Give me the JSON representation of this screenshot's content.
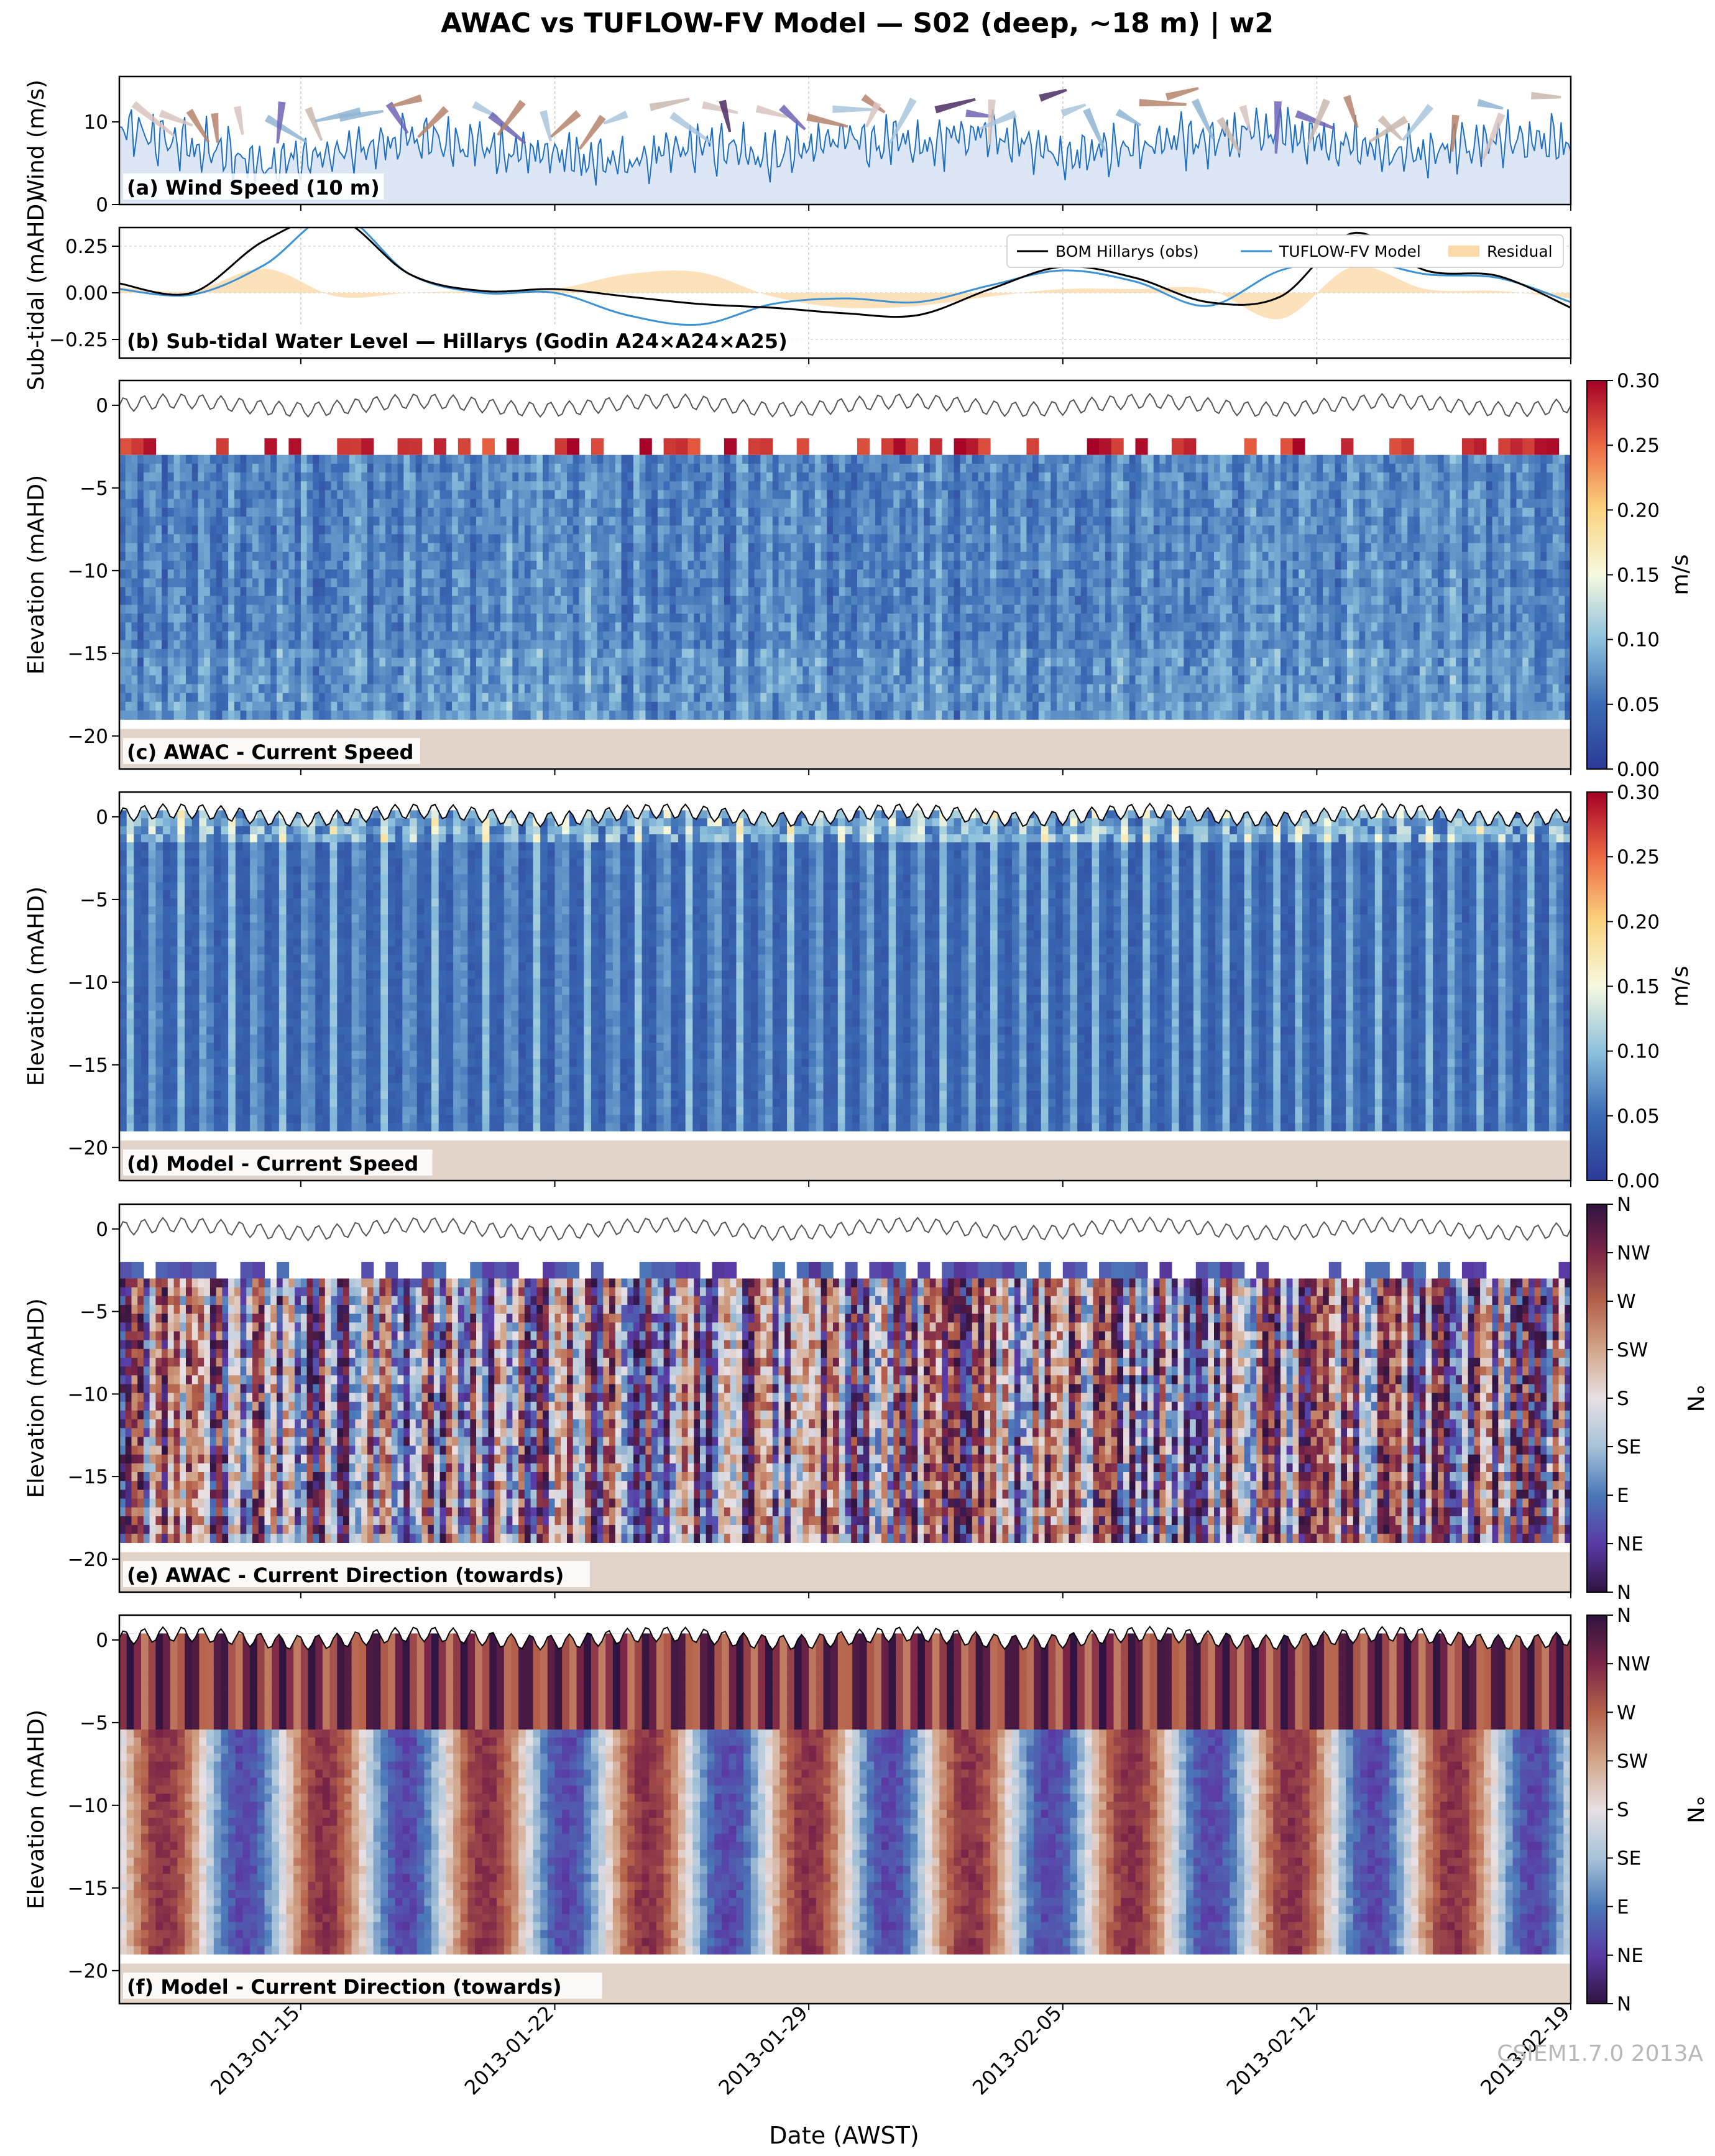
{
  "figure": {
    "title": "AWAC vs TUFLOW-FV Model — S02 (deep, ~18 m) | w2",
    "xlabel": "Date (AWST)",
    "x_ticks": [
      "2013-01-15",
      "2013-01-22",
      "2013-01-29",
      "2013-02-05",
      "2013-02-12",
      "2013-02-19"
    ],
    "x_range": [
      "2013-01-10",
      "2013-02-19"
    ],
    "watermark": "CSIEM1.7.0 2013A"
  },
  "chart_data": [
    {
      "id": "a",
      "type": "area",
      "label": "(a) Wind Speed (10 m)",
      "ylabel": "Wind (m/s)",
      "ylim": [
        0,
        15.5
      ],
      "y_ticks": [
        "0",
        "10"
      ],
      "color": "#1f6fc0",
      "fill": "#dce6f5",
      "x": [
        "2013-01-10",
        "2013-01-12",
        "2013-01-14",
        "2013-01-16",
        "2013-01-18",
        "2013-01-20",
        "2013-01-22",
        "2013-01-24",
        "2013-01-26",
        "2013-01-28",
        "2013-01-30",
        "2013-02-01",
        "2013-02-03",
        "2013-02-05",
        "2013-02-07",
        "2013-02-09",
        "2013-02-11",
        "2013-02-13",
        "2013-02-15",
        "2013-02-17",
        "2013-02-19"
      ],
      "values": [
        9,
        7,
        5,
        6,
        8,
        7,
        6,
        5,
        7,
        6,
        8,
        7,
        9,
        6,
        7,
        8,
        9,
        7,
        6,
        8,
        7
      ]
    },
    {
      "id": "b",
      "type": "line",
      "label": "(b) Sub-tidal Water Level — Hillarys (Godin A24×A24×A25)",
      "ylabel": "Sub-tidal (mAHD)",
      "ylim": [
        -0.35,
        0.35
      ],
      "y_ticks": [
        "0.25",
        "0.00",
        "−0.25"
      ],
      "legend_position": "top-right",
      "x": [
        "2013-01-10",
        "2013-01-12",
        "2013-01-14",
        "2013-01-16",
        "2013-01-18",
        "2013-01-20",
        "2013-01-22",
        "2013-01-24",
        "2013-01-26",
        "2013-01-28",
        "2013-01-30",
        "2013-02-01",
        "2013-02-03",
        "2013-02-05",
        "2013-02-07",
        "2013-02-09",
        "2013-02-11",
        "2013-02-13",
        "2013-02-15",
        "2013-02-17",
        "2013-02-19"
      ],
      "series": [
        {
          "name": "BOM Hillarys (obs)",
          "color": "#000000",
          "values": [
            0.05,
            0.0,
            0.28,
            0.4,
            0.1,
            0.01,
            0.02,
            -0.02,
            -0.06,
            -0.08,
            -0.11,
            -0.12,
            0.02,
            0.14,
            0.08,
            -0.05,
            -0.02,
            0.32,
            0.12,
            0.09,
            -0.08
          ]
        },
        {
          "name": "TUFLOW-FV Model",
          "color": "#3b93d6",
          "values": [
            0.02,
            -0.01,
            0.15,
            0.42,
            0.1,
            0.0,
            0.0,
            -0.12,
            -0.17,
            -0.06,
            -0.03,
            -0.05,
            0.04,
            0.12,
            0.06,
            -0.07,
            0.12,
            0.18,
            0.1,
            0.08,
            -0.05
          ]
        },
        {
          "name": "Residual",
          "color": "#fcd9a9",
          "values": [
            0.03,
            0.01,
            0.13,
            -0.02,
            0.0,
            0.01,
            0.02,
            0.1,
            0.11,
            -0.02,
            -0.08,
            -0.07,
            -0.02,
            0.02,
            0.02,
            0.02,
            -0.14,
            0.14,
            0.02,
            0.01,
            -0.03
          ]
        }
      ]
    },
    {
      "id": "c",
      "type": "heatmap",
      "label": "(c) AWAC - Current Speed",
      "ylabel": "Elevation (mAHD)",
      "ylim": [
        -22,
        1.5
      ],
      "y_ticks": [
        "0",
        "−5",
        "−10",
        "−15",
        "−20"
      ],
      "colorbar": {
        "label": "m/s",
        "ticks": [
          "0.30",
          "0.25",
          "0.20",
          "0.15",
          "0.10",
          "0.05",
          "0.00"
        ],
        "cmap": "speed"
      },
      "bed_level": -19.5
    },
    {
      "id": "d",
      "type": "heatmap",
      "label": "(d) Model - Current Speed",
      "ylabel": "Elevation (mAHD)",
      "ylim": [
        -22,
        1.5
      ],
      "y_ticks": [
        "0",
        "−5",
        "−10",
        "−15",
        "−20"
      ],
      "colorbar": {
        "label": "m/s",
        "ticks": [
          "0.30",
          "0.25",
          "0.20",
          "0.15",
          "0.10",
          "0.05",
          "0.00"
        ],
        "cmap": "speed"
      },
      "bed_level": -19.5
    },
    {
      "id": "e",
      "type": "heatmap",
      "label": "(e) AWAC - Current Direction (towards)",
      "ylabel": "Elevation (mAHD)",
      "ylim": [
        -22,
        1.5
      ],
      "y_ticks": [
        "0",
        "−5",
        "−10",
        "−15",
        "−20"
      ],
      "colorbar": {
        "label": "°N",
        "ticks": [
          "N",
          "NW",
          "W",
          "SW",
          "S",
          "SE",
          "E",
          "NE",
          "N"
        ],
        "cmap": "direction"
      },
      "bed_level": -19.5
    },
    {
      "id": "f",
      "type": "heatmap",
      "label": "(f) Model - Current Direction (towards)",
      "ylabel": "Elevation (mAHD)",
      "ylim": [
        -22,
        1.5
      ],
      "y_ticks": [
        "0",
        "−5",
        "−10",
        "−15",
        "−20"
      ],
      "colorbar": {
        "label": "°N",
        "ticks": [
          "N",
          "NW",
          "W",
          "SW",
          "S",
          "SE",
          "E",
          "NE",
          "N"
        ],
        "cmap": "direction"
      },
      "bed_level": -19.5
    }
  ]
}
